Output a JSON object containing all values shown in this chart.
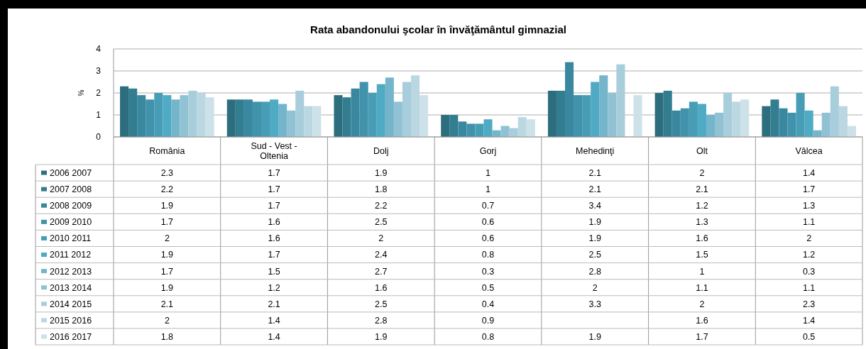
{
  "chart_data": {
    "type": "bar",
    "title": "Rata abandonului şcolar în învăţământul gimnazial",
    "ylabel": "%",
    "categories": [
      "România",
      "Sud - Vest - Oltenia",
      "Dolj",
      "Gorj",
      "Mehedinţi",
      "Olt",
      "Vâlcea"
    ],
    "ylim": [
      0,
      4
    ],
    "yticks": [
      0,
      1,
      2,
      3,
      4
    ],
    "grid": "y",
    "legend": "bottom",
    "data_labels": true,
    "series": [
      {
        "name": "2006 2007",
        "color": "#2d6e7e",
        "values": [
          2.3,
          1.7,
          1.9,
          1,
          2.1,
          2,
          1.4
        ]
      },
      {
        "name": "2007 2008",
        "color": "#337d91",
        "values": [
          2.2,
          1.7,
          1.8,
          1,
          2.1,
          2.1,
          1.7
        ]
      },
      {
        "name": "2008 2009",
        "color": "#3a88a0",
        "values": [
          1.9,
          1.7,
          2.2,
          0.7,
          3.4,
          1.2,
          1.3
        ]
      },
      {
        "name": "2009 2010",
        "color": "#4093ab",
        "values": [
          1.7,
          1.6,
          2.5,
          0.6,
          1.9,
          1.3,
          1.1
        ]
      },
      {
        "name": "2010 2011",
        "color": "#479db6",
        "values": [
          2,
          1.6,
          2,
          0.6,
          1.9,
          1.6,
          2
        ]
      },
      {
        "name": "2011 2012",
        "color": "#4faac4",
        "values": [
          1.9,
          1.7,
          2.4,
          0.8,
          2.5,
          1.5,
          1.2
        ]
      },
      {
        "name": "2012 2013",
        "color": "#74b5cb",
        "values": [
          1.7,
          1.5,
          2.7,
          0.3,
          2.8,
          1,
          0.3
        ]
      },
      {
        "name": "2013 2014",
        "color": "#90c2d4",
        "values": [
          1.9,
          1.2,
          1.6,
          0.5,
          2,
          1.1,
          1.1
        ]
      },
      {
        "name": "2014 2015",
        "color": "#a8cedc",
        "values": [
          2.1,
          2.1,
          2.5,
          0.4,
          3.3,
          2,
          2.3
        ]
      },
      {
        "name": "2015 2016",
        "color": "#bad7e2",
        "values": [
          2,
          1.4,
          2.8,
          0.9,
          null,
          1.6,
          1.4
        ]
      },
      {
        "name": "2016 2017",
        "color": "#cde1e9",
        "values": [
          1.8,
          1.4,
          1.9,
          0.8,
          1.9,
          1.7,
          0.5
        ]
      }
    ]
  }
}
